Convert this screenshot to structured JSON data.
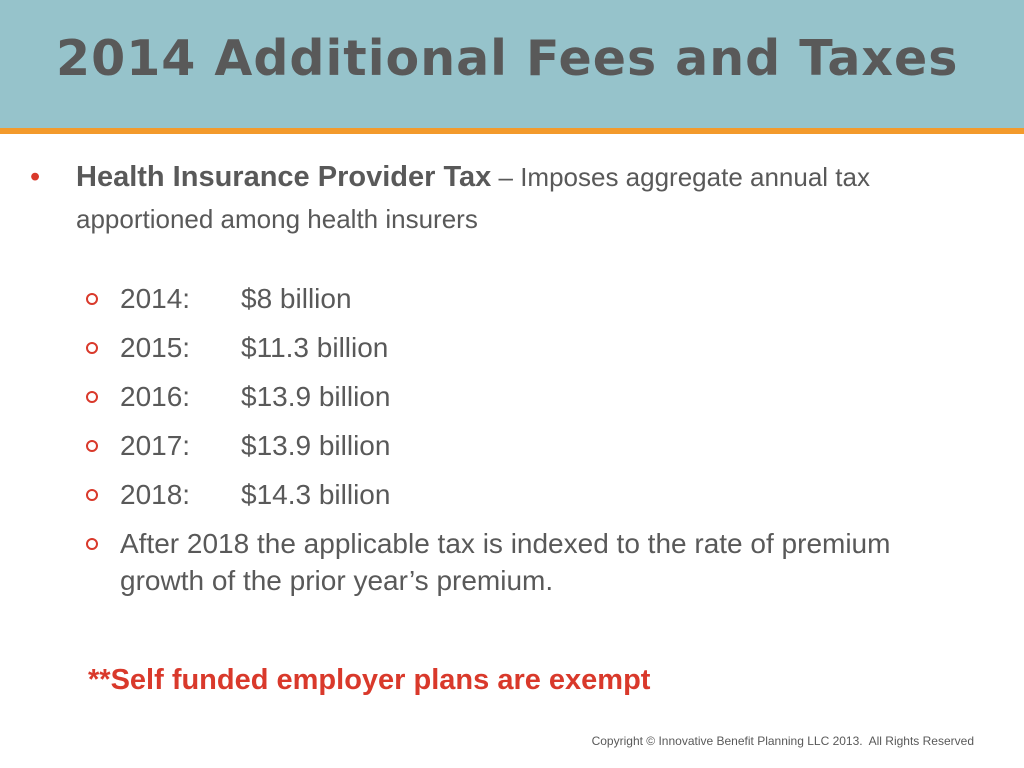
{
  "slide": {
    "title": "2014 Additional Fees and Taxes",
    "bullet": {
      "heading": "Health Insurance Provider Tax",
      "description": " – Imposes aggregate annual tax apportioned among health insurers"
    },
    "sub_items": [
      {
        "year": "2014:",
        "amount": "$8 billion"
      },
      {
        "year": "2015:",
        "amount": "$11.3 billion"
      },
      {
        "year": "2016:",
        "amount": "$13.9 billion"
      },
      {
        "year": "2017:",
        "amount": "$13.9 billion"
      },
      {
        "year": "2018:",
        "amount": "$14.3 billion"
      }
    ],
    "final_item": "After 2018 the applicable tax is indexed to the rate of premium growth of the prior year’s premium.",
    "note": "**Self funded employer plans are exempt",
    "copyright": "Copyright © Innovative Benefit Planning LLC 2013.  All Rights Reserved"
  },
  "colors": {
    "header_bg": "#96c3cb",
    "header_rule": "#f39a2c",
    "accent_red": "#d9392b",
    "text_gray": "#595959"
  }
}
